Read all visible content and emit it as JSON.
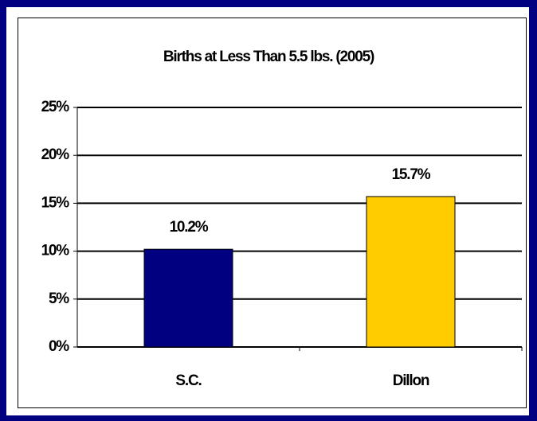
{
  "chart_data": {
    "type": "bar",
    "title": "Births at Less Than 5.5 lbs. (2005)",
    "categories": [
      "S.C.",
      "Dillon"
    ],
    "values": [
      10.2,
      15.7
    ],
    "value_labels": [
      "10.2%",
      "15.7%"
    ],
    "colors": [
      "#000080",
      "#ffcc00"
    ],
    "ylim": [
      0,
      25
    ],
    "yticks": [
      {
        "value": 0,
        "label": "0%"
      },
      {
        "value": 5,
        "label": "5%"
      },
      {
        "value": 10,
        "label": "10%"
      },
      {
        "value": 15,
        "label": "15%"
      },
      {
        "value": 20,
        "label": "20%"
      },
      {
        "value": 25,
        "label": "25%"
      }
    ],
    "grid": true
  }
}
